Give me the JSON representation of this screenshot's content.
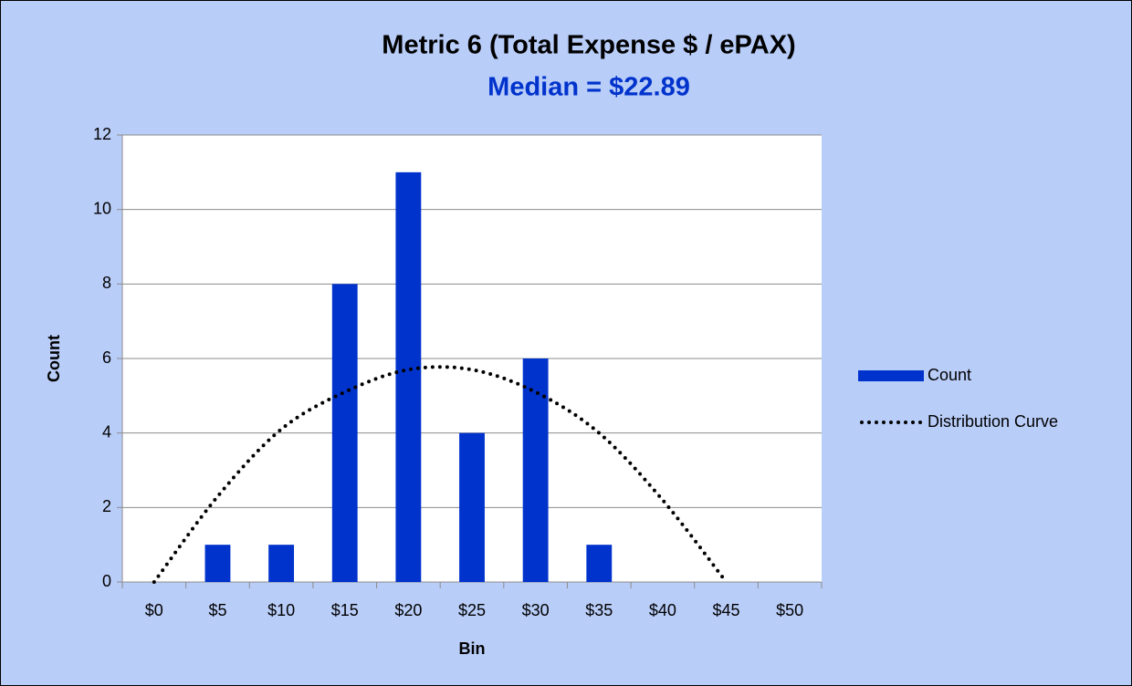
{
  "chart_data": {
    "type": "bar",
    "title": "Metric 6 (Total Expense $ / ePAX)",
    "subtitle": "Median = $22.89",
    "x_label": "Bin",
    "y_label": "Count",
    "categories": [
      "$0",
      "$5",
      "$10",
      "$15",
      "$20",
      "$25",
      "$30",
      "$35",
      "$40",
      "$45",
      "$50"
    ],
    "series": [
      {
        "name": "Count",
        "type": "bar",
        "color": "#0033cc",
        "values": [
          0,
          1,
          1,
          8,
          11,
          4,
          6,
          1,
          0,
          0,
          0
        ]
      },
      {
        "name": "Distribution Curve",
        "type": "line",
        "color": "#000000",
        "values": [
          0,
          2.3,
          4.1,
          5.1,
          5.7,
          5.7,
          5.1,
          4.0,
          2.2,
          0,
          null
        ]
      }
    ],
    "ylim": [
      0,
      12
    ],
    "yticks": [
      0,
      2,
      4,
      6,
      8,
      10,
      12
    ],
    "grid": true,
    "legend": "right"
  }
}
